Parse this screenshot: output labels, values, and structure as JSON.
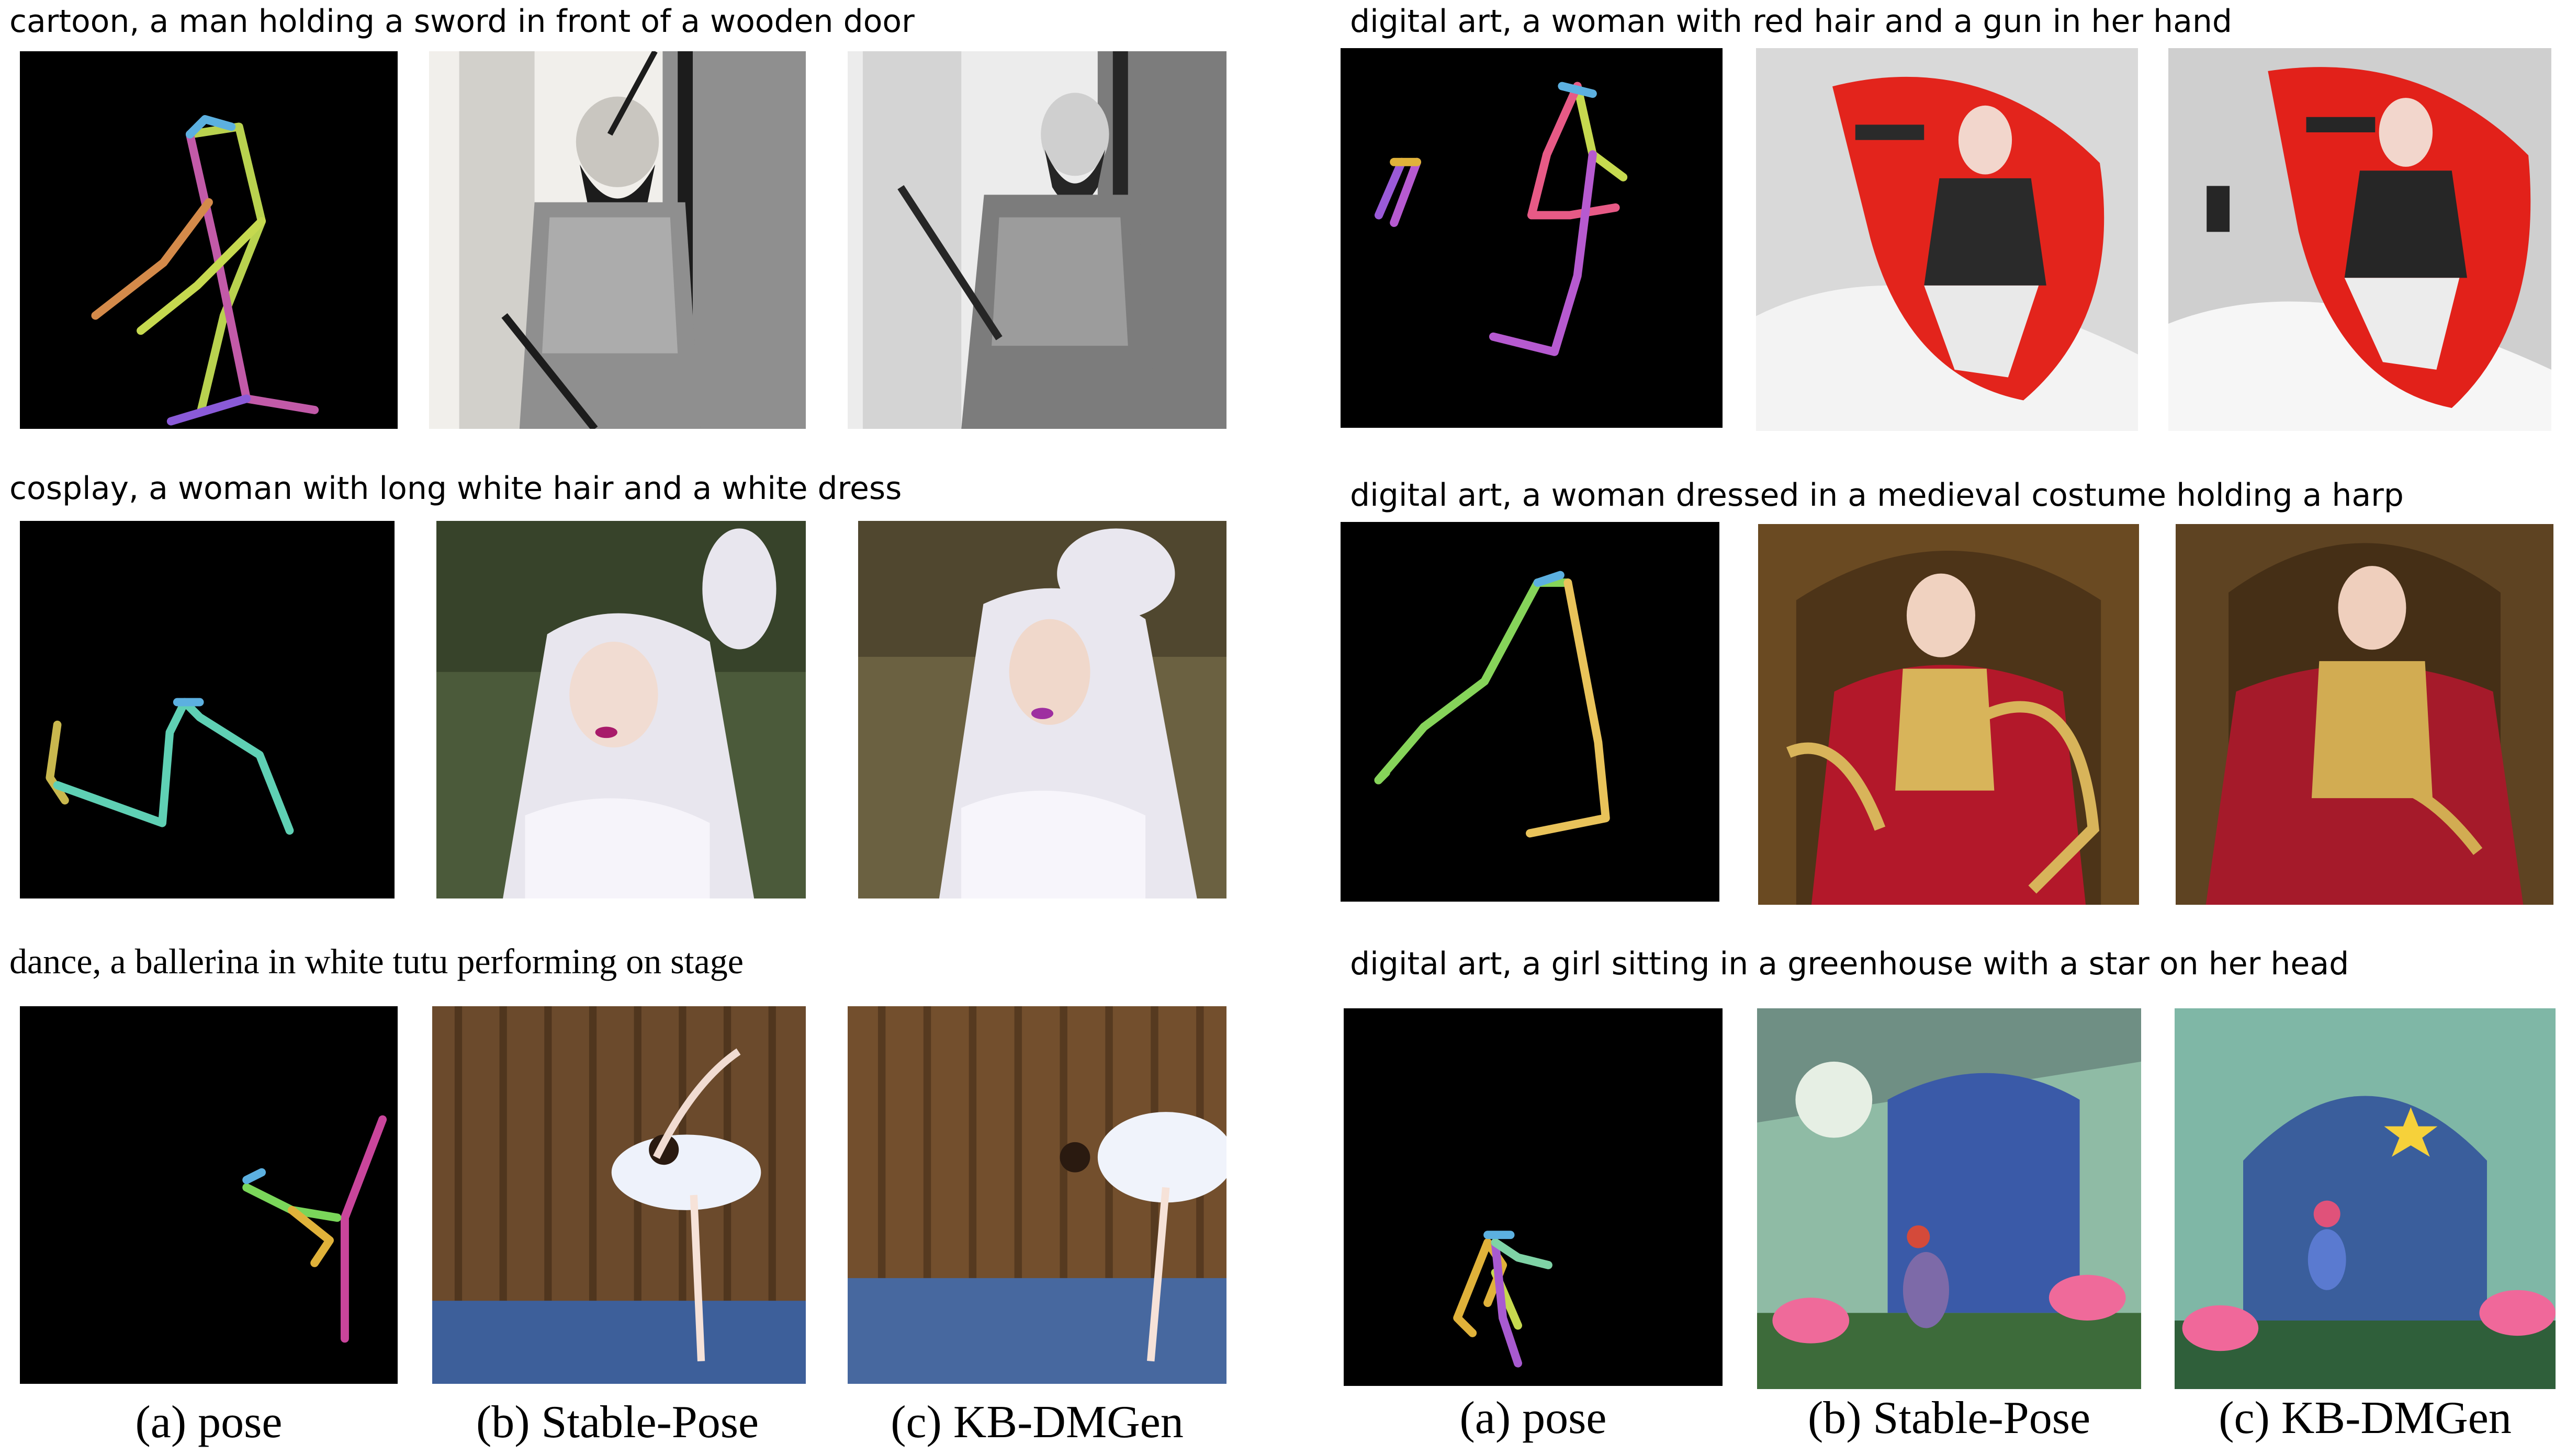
{
  "panels": [
    {
      "caption": "cartoon, a man holding a sword in front of a wooden door",
      "pose_color_a": "#7ad65a",
      "pose_color_b": "#c25aa8",
      "sp_scheme": {
        "bg": "#f1efeb",
        "mid": "#8f8f8f",
        "dark": "#1c1c1c",
        "accent": "#b8b8b8"
      },
      "kb_scheme": {
        "bg": "#ececec",
        "mid": "#7c7c7c",
        "dark": "#262626",
        "accent": "#a9a9a9"
      }
    },
    {
      "caption": "cosplay, a woman with long white hair and a white dress",
      "pose_color_a": "#c9b84e",
      "pose_color_b": "#5fd0b4",
      "sp_scheme": {
        "bg": "#4b5a3a",
        "mid": "#e8e6ee",
        "dark": "#2a3320",
        "accent": "#f6f4fa"
      },
      "kb_scheme": {
        "bg": "#6b6141",
        "mid": "#e9e7ef",
        "dark": "#3a3320",
        "accent": "#f7f5fb"
      }
    },
    {
      "caption": "dance, a ballerina in white tutu performing on stage",
      "pose_color_a": "#c9459b",
      "pose_color_b": "#e0b23a",
      "sp_scheme": {
        "bg": "#6b4a2c",
        "mid": "#3d5f9a",
        "dark": "#3b2614",
        "accent": "#eef2fb"
      },
      "kb_scheme": {
        "bg": "#734f2d",
        "mid": "#47689f",
        "dark": "#3f2a16",
        "accent": "#f0f3fb"
      }
    },
    {
      "caption": "digital art, a woman with red hair and a gun in her hand",
      "pose_color_a": "#b65ad0",
      "pose_color_b": "#e75a86",
      "sp_scheme": {
        "bg": "#d9d9d9",
        "mid": "#e3241c",
        "dark": "#2a2a2a",
        "accent": "#f3f3f3"
      },
      "kb_scheme": {
        "bg": "#cfcfcf",
        "mid": "#e2211a",
        "dark": "#262626",
        "accent": "#f6f6f6"
      }
    },
    {
      "caption": "digital art, a woman dressed in a medieval costume holding a harp",
      "pose_color_a": "#86d45a",
      "pose_color_b": "#e9c35a",
      "sp_scheme": {
        "bg": "#6a4a22",
        "mid": "#b3182a",
        "dark": "#3a2612",
        "accent": "#d8b45a"
      },
      "kb_scheme": {
        "bg": "#5e4322",
        "mid": "#a51a2a",
        "dark": "#35230f",
        "accent": "#d2ac52"
      }
    },
    {
      "caption": "digital art, a girl sitting in a greenhouse with a star on her head",
      "pose_color_a": "#7fd3a6",
      "pose_color_b": "#a85ad0",
      "sp_scheme": {
        "bg": "#8fbba5",
        "mid": "#3a5aa8",
        "dark": "#3d6b3a",
        "accent": "#ef6a9a"
      },
      "kb_scheme": {
        "bg": "#7fb7a6",
        "mid": "#2e4f9a",
        "dark": "#2f5f3a",
        "accent": "#f0689a"
      }
    }
  ],
  "column_labels": {
    "left": [
      "(a) pose",
      "(b) Stable-Pose",
      "(c) KB-DMGen"
    ],
    "right": [
      "(a) pose",
      "(b) Stable-Pose",
      "(c) KB-DMGen"
    ]
  }
}
